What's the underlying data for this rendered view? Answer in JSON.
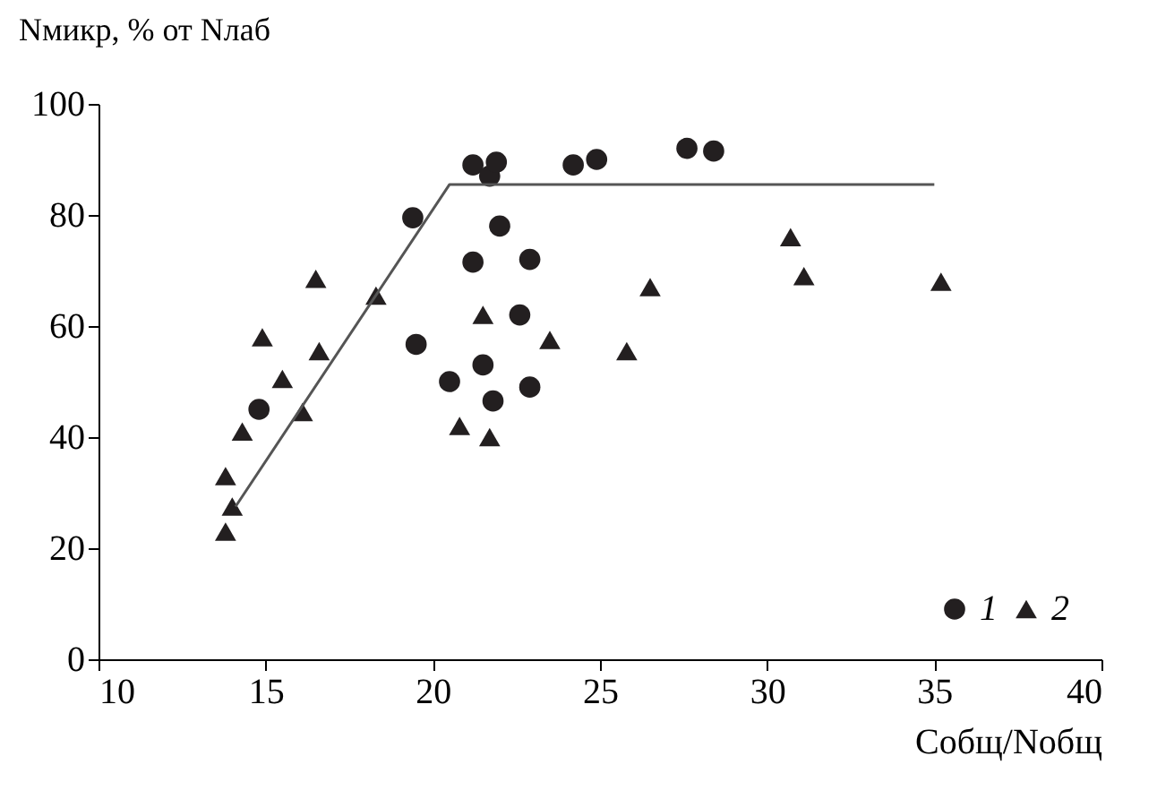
{
  "chart_data": {
    "type": "scatter",
    "xlabel": "Cобщ/Nобщ",
    "ylabel": "Nмикр, % от Nлаб",
    "xlim": [
      10,
      40
    ],
    "xticks": [
      10,
      15,
      20,
      25,
      30,
      35,
      40
    ],
    "ylim": [
      0,
      100
    ],
    "yticks": [
      0,
      20,
      40,
      60,
      80,
      100
    ],
    "grid": false,
    "legend": "bottom right",
    "series": [
      {
        "name": "1",
        "color": "#231f20",
        "marker": "circle",
        "x": [
          14.8,
          19.4,
          19.5,
          21.2,
          21.2,
          21.7,
          21.9,
          22.0,
          20.5,
          21.5,
          21.8,
          22.6,
          22.9,
          22.9,
          24.2,
          24.9,
          27.6,
          28.4
        ],
        "values": [
          45,
          79.5,
          56.7,
          89,
          71.5,
          87,
          89.5,
          78,
          50,
          53,
          46.5,
          62,
          72,
          49,
          89,
          90,
          92,
          91.5
        ]
      },
      {
        "name": "2",
        "color": "#231f20",
        "marker": "triangle",
        "x": [
          13.8,
          13.8,
          14.0,
          14.3,
          14.9,
          15.5,
          16.1,
          16.5,
          16.6,
          18.3,
          20.8,
          21.5,
          21.7,
          23.5,
          25.8,
          26.5,
          30.7,
          31.1,
          35.2
        ],
        "values": [
          33,
          23,
          27.5,
          41,
          58,
          50.5,
          44.5,
          68.5,
          55.5,
          65.5,
          42,
          62,
          40,
          57.5,
          55.5,
          67,
          76,
          69,
          68
        ]
      },
      {
        "type": "line",
        "color": "#555555",
        "marker": "none",
        "line_style": "solid",
        "x": [
          14.1,
          20.5,
          35.0
        ],
        "values": [
          27.5,
          85.5,
          85.5
        ]
      }
    ]
  }
}
